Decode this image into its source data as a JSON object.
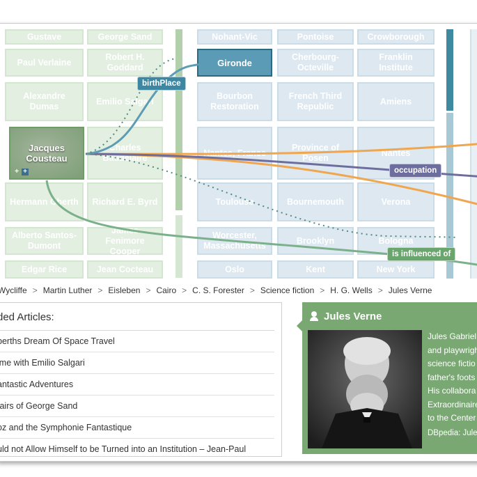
{
  "graph": {
    "grid_left": [
      [
        "Gustave",
        "George Sand"
      ],
      [
        "Paul Verlaine",
        "Robert H. Goddard"
      ],
      [
        "Alexandre Dumas",
        "Emilio Salgari"
      ],
      [
        "",
        "Charles Baudelaire"
      ],
      [
        "Hermann Oberth",
        "Richard E. Byrd"
      ],
      [
        "Alberto Santos-Dumont",
        "James Fenimore Cooper"
      ],
      [
        "Edgar Rice",
        "Jean Cocteau"
      ]
    ],
    "grid_right": [
      [
        "Nohant-Vic",
        "Pontoise",
        "Crowborough"
      ],
      [
        "Gironde",
        "Cherbourg-Octeville",
        "Franklin Institute"
      ],
      [
        "Bourbon Restoration",
        "French Third Republic",
        "Amiens"
      ],
      [
        "Nantes, France",
        "Province of Posen",
        "Nantes"
      ],
      [
        "Toulouse",
        "Bournemouth",
        "Verona"
      ],
      [
        "Worcester, Massachusetts",
        "Brooklyn",
        "Bologna"
      ],
      [
        "Oslo",
        "Kent",
        "New York"
      ]
    ],
    "focus_node": "Jacques Cousteau",
    "highlight_node": "Gironde",
    "edge_labels": {
      "birthplace": "birthPlace",
      "occupation": "occupation",
      "influenced": "is influenced of"
    },
    "colors": {
      "birthplace": "#3d87a3",
      "occupation": "#6e6e9e",
      "influenced": "#6aa56d",
      "orange": "#efa64f"
    }
  },
  "breadcrumb": [
    "Wycliffe",
    "Martin Luther",
    "Eisleben",
    "Cairo",
    "C. S. Forester",
    "Science fiction",
    "H. G. Wells",
    "Jules Verne"
  ],
  "articles": {
    "heading": "ded Articles:",
    "items": [
      "berths Dream Of Space Travel",
      "ime with Emilio Salgari",
      "antastic Adventures",
      "fairs of George Sand",
      "oz and the Symphonie Fantastique",
      "uld not Allow Himself to be Turned into an Institution – Jean-Paul"
    ]
  },
  "entity": {
    "icon": "person-icon",
    "title": "Jules Verne",
    "description_lines": [
      "Jules Gabriel",
      "and playwrigh",
      "science fictio",
      "father's foots",
      "His collabora",
      "Extraordinaire",
      "to the Center"
    ],
    "source": "DBpedia: Jules"
  }
}
